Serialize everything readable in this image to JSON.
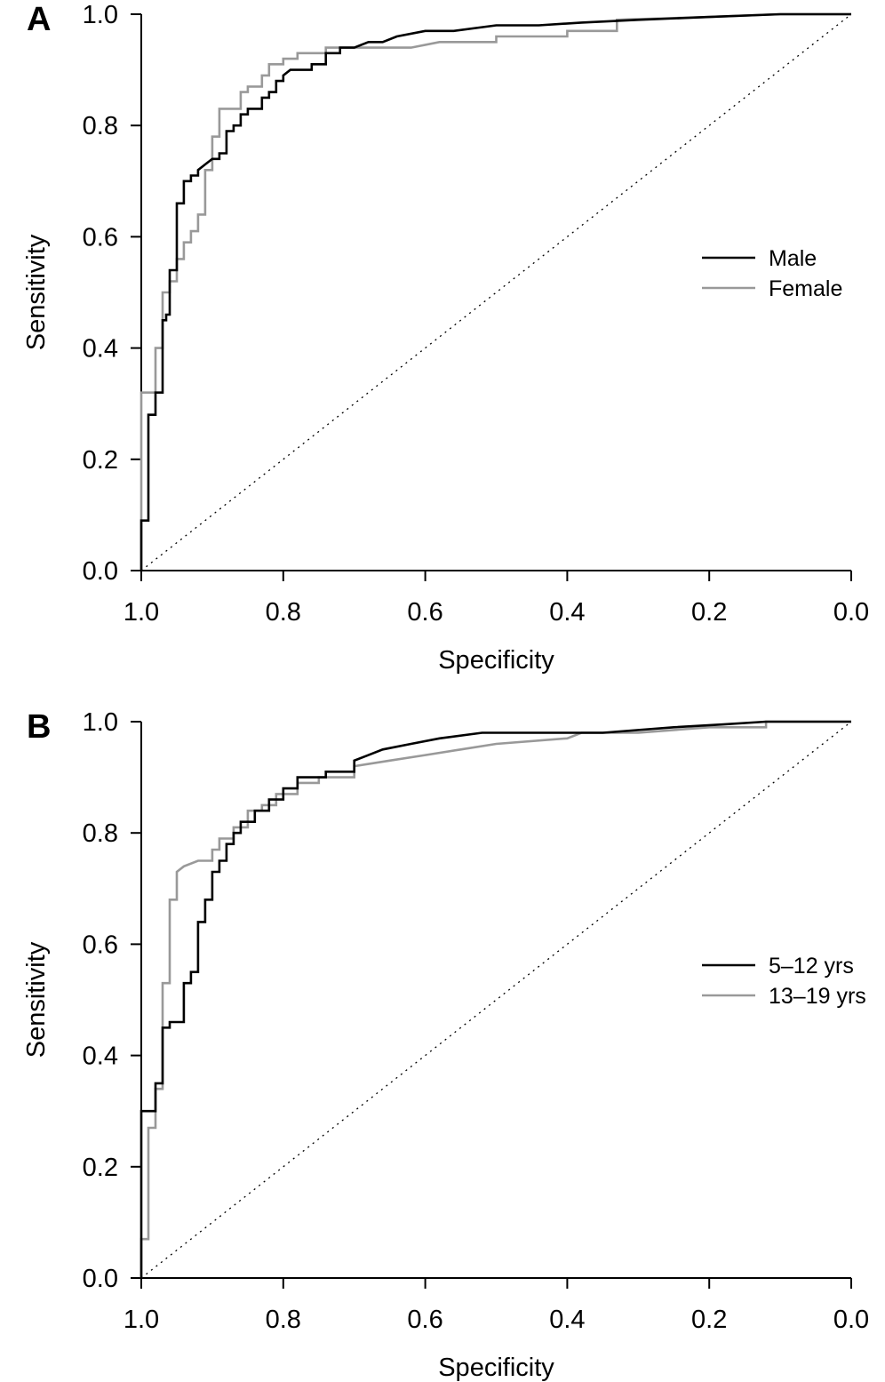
{
  "chart_data": [
    {
      "panel": "A",
      "type": "line",
      "xlabel": "Specificity",
      "ylabel": "Sensitivity",
      "xlim": [
        1.0,
        0.0
      ],
      "ylim": [
        0.0,
        1.0
      ],
      "x_reversed": true,
      "xticks": [
        "1.0",
        "0.8",
        "0.6",
        "0.4",
        "0.2",
        "0.0"
      ],
      "yticks": [
        "0.0",
        "0.2",
        "0.4",
        "0.6",
        "0.8",
        "1.0"
      ],
      "legend_position": "right",
      "reference_line": {
        "style": "dotted",
        "from": [
          1.0,
          0.0
        ],
        "to": [
          0.0,
          1.0
        ]
      },
      "series": [
        {
          "name": "Male",
          "color": "#000000",
          "specificity": [
            1.0,
            1.0,
            0.99,
            0.99,
            0.98,
            0.98,
            0.97,
            0.97,
            0.965,
            0.965,
            0.96,
            0.96,
            0.95,
            0.95,
            0.94,
            0.94,
            0.93,
            0.93,
            0.92,
            0.92,
            0.91,
            0.9,
            0.89,
            0.89,
            0.88,
            0.88,
            0.87,
            0.87,
            0.86,
            0.86,
            0.85,
            0.85,
            0.83,
            0.83,
            0.82,
            0.82,
            0.81,
            0.81,
            0.8,
            0.8,
            0.79,
            0.77,
            0.76,
            0.76,
            0.74,
            0.74,
            0.72,
            0.72,
            0.7,
            0.68,
            0.66,
            0.64,
            0.6,
            0.56,
            0.5,
            0.44,
            0.38,
            0.3,
            0.2,
            0.1,
            0.0
          ],
          "sensitivity": [
            0.0,
            0.09,
            0.09,
            0.28,
            0.28,
            0.32,
            0.32,
            0.45,
            0.45,
            0.46,
            0.46,
            0.54,
            0.54,
            0.66,
            0.66,
            0.7,
            0.7,
            0.71,
            0.71,
            0.72,
            0.73,
            0.74,
            0.74,
            0.75,
            0.75,
            0.79,
            0.79,
            0.8,
            0.8,
            0.82,
            0.82,
            0.83,
            0.83,
            0.85,
            0.85,
            0.86,
            0.86,
            0.88,
            0.88,
            0.89,
            0.9,
            0.9,
            0.9,
            0.91,
            0.91,
            0.93,
            0.93,
            0.94,
            0.94,
            0.95,
            0.95,
            0.96,
            0.97,
            0.97,
            0.98,
            0.98,
            0.985,
            0.99,
            0.995,
            1.0,
            1.0
          ]
        },
        {
          "name": "Female",
          "color": "#999999",
          "specificity": [
            1.0,
            1.0,
            0.98,
            0.98,
            0.97,
            0.97,
            0.96,
            0.96,
            0.95,
            0.95,
            0.94,
            0.94,
            0.93,
            0.93,
            0.92,
            0.92,
            0.91,
            0.91,
            0.9,
            0.9,
            0.89,
            0.89,
            0.87,
            0.87,
            0.86,
            0.86,
            0.85,
            0.85,
            0.83,
            0.83,
            0.82,
            0.82,
            0.8,
            0.8,
            0.78,
            0.78,
            0.74,
            0.74,
            0.7,
            0.68,
            0.62,
            0.58,
            0.5,
            0.5,
            0.4,
            0.4,
            0.33,
            0.33,
            0.2,
            0.1,
            0.0
          ],
          "sensitivity": [
            0.0,
            0.32,
            0.32,
            0.4,
            0.4,
            0.5,
            0.5,
            0.52,
            0.52,
            0.56,
            0.56,
            0.59,
            0.59,
            0.61,
            0.61,
            0.64,
            0.64,
            0.72,
            0.72,
            0.78,
            0.78,
            0.83,
            0.83,
            0.83,
            0.83,
            0.86,
            0.86,
            0.87,
            0.87,
            0.89,
            0.89,
            0.91,
            0.91,
            0.92,
            0.92,
            0.93,
            0.93,
            0.94,
            0.94,
            0.94,
            0.94,
            0.95,
            0.95,
            0.96,
            0.96,
            0.97,
            0.97,
            0.99,
            0.995,
            1.0,
            1.0
          ]
        }
      ]
    },
    {
      "panel": "B",
      "type": "line",
      "xlabel": "Specificity",
      "ylabel": "Sensitivity",
      "xlim": [
        1.0,
        0.0
      ],
      "ylim": [
        0.0,
        1.0
      ],
      "x_reversed": true,
      "xticks": [
        "1.0",
        "0.8",
        "0.6",
        "0.4",
        "0.2",
        "0.0"
      ],
      "yticks": [
        "0.0",
        "0.2",
        "0.4",
        "0.6",
        "0.8",
        "1.0"
      ],
      "legend_position": "right",
      "reference_line": {
        "style": "dotted",
        "from": [
          1.0,
          0.0
        ],
        "to": [
          0.0,
          1.0
        ]
      },
      "series": [
        {
          "name": "5–12 yrs",
          "color": "#000000",
          "specificity": [
            1.0,
            1.0,
            0.98,
            0.98,
            0.97,
            0.97,
            0.96,
            0.96,
            0.94,
            0.94,
            0.93,
            0.93,
            0.92,
            0.92,
            0.91,
            0.91,
            0.9,
            0.9,
            0.89,
            0.89,
            0.88,
            0.88,
            0.87,
            0.87,
            0.86,
            0.86,
            0.84,
            0.84,
            0.82,
            0.82,
            0.8,
            0.8,
            0.78,
            0.78,
            0.74,
            0.74,
            0.7,
            0.7,
            0.68,
            0.66,
            0.62,
            0.58,
            0.52,
            0.45,
            0.35,
            0.25,
            0.18,
            0.12,
            0.0
          ],
          "sensitivity": [
            0.0,
            0.3,
            0.3,
            0.35,
            0.35,
            0.45,
            0.45,
            0.46,
            0.46,
            0.53,
            0.53,
            0.55,
            0.55,
            0.64,
            0.64,
            0.68,
            0.68,
            0.73,
            0.73,
            0.75,
            0.75,
            0.78,
            0.78,
            0.8,
            0.8,
            0.82,
            0.82,
            0.84,
            0.84,
            0.86,
            0.86,
            0.88,
            0.88,
            0.9,
            0.9,
            0.91,
            0.91,
            0.93,
            0.94,
            0.95,
            0.96,
            0.97,
            0.98,
            0.98,
            0.98,
            0.99,
            0.995,
            1.0,
            1.0
          ]
        },
        {
          "name": "13–19 yrs",
          "color": "#999999",
          "specificity": [
            1.0,
            1.0,
            0.99,
            0.99,
            0.98,
            0.98,
            0.97,
            0.97,
            0.96,
            0.96,
            0.95,
            0.95,
            0.94,
            0.92,
            0.9,
            0.9,
            0.89,
            0.89,
            0.87,
            0.87,
            0.85,
            0.85,
            0.83,
            0.83,
            0.81,
            0.81,
            0.78,
            0.78,
            0.75,
            0.75,
            0.7,
            0.7,
            0.65,
            0.6,
            0.55,
            0.5,
            0.4,
            0.38,
            0.3,
            0.2,
            0.12,
            0.12,
            0.0
          ],
          "sensitivity": [
            0.0,
            0.07,
            0.07,
            0.27,
            0.27,
            0.34,
            0.34,
            0.53,
            0.53,
            0.68,
            0.68,
            0.73,
            0.74,
            0.75,
            0.75,
            0.77,
            0.77,
            0.79,
            0.79,
            0.81,
            0.81,
            0.84,
            0.84,
            0.85,
            0.85,
            0.87,
            0.87,
            0.89,
            0.89,
            0.9,
            0.9,
            0.92,
            0.93,
            0.94,
            0.95,
            0.96,
            0.97,
            0.98,
            0.98,
            0.99,
            0.99,
            1.0,
            1.0
          ]
        }
      ]
    }
  ]
}
